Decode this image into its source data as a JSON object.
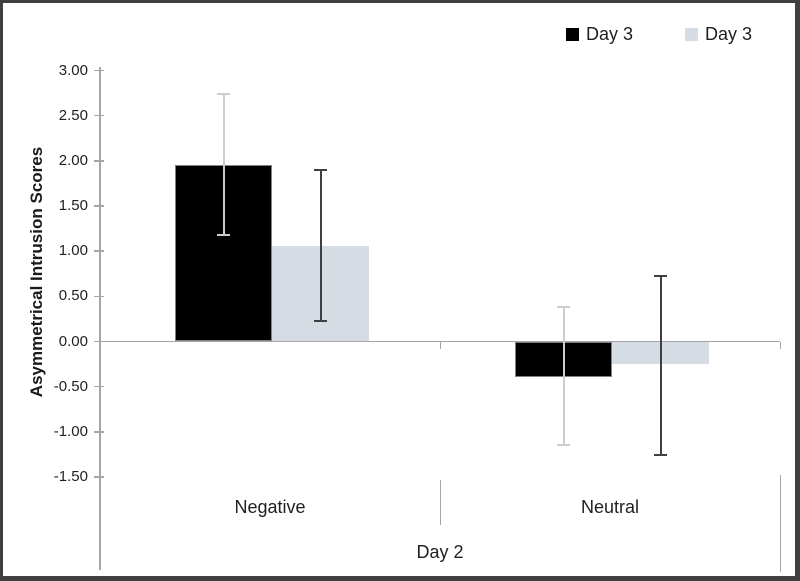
{
  "window": {
    "background": "#ffffff",
    "frame_border_color": "#3f3f3f",
    "axis_color": "#a6a6a6",
    "text_color": "#1f1f1f"
  },
  "chart_data": {
    "type": "bar",
    "title": "",
    "ylabel": "Asymmetrical Intrusion Scores",
    "xlabel": "Day 2",
    "categories": [
      "Negative",
      "Neutral"
    ],
    "ylim": [
      -1.5,
      3.0
    ],
    "ytick_step": 0.5,
    "ytick_labels": [
      "3.00",
      "2.50",
      "2.00",
      "1.50",
      "1.00",
      "0.50",
      "0.00",
      "-0.50",
      "-1.00",
      "-1.50"
    ],
    "grid": false,
    "legend_position": "top-right",
    "series": [
      {
        "name": "Day 3",
        "color": "#000000",
        "border_color": "#808080",
        "error_color": "#cccccc",
        "values": [
          1.95,
          -0.39
        ],
        "error_high": [
          2.74,
          0.38
        ],
        "error_low": [
          1.18,
          -1.15
        ]
      },
      {
        "name": "Day 3",
        "color": "#d6dce4",
        "border_color": "#d6dce4",
        "error_color": "#404040",
        "values": [
          1.06,
          -0.25
        ],
        "error_high": [
          1.9,
          0.73
        ],
        "error_low": [
          0.23,
          -1.26
        ]
      }
    ]
  }
}
